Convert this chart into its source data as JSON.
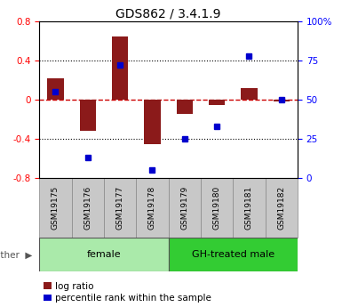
{
  "title": "GDS862 / 3.4.1.9",
  "samples": [
    "GSM19175",
    "GSM19176",
    "GSM19177",
    "GSM19178",
    "GSM19179",
    "GSM19180",
    "GSM19181",
    "GSM19182"
  ],
  "log_ratio": [
    0.22,
    -0.32,
    0.65,
    -0.45,
    -0.14,
    -0.05,
    0.12,
    -0.02
  ],
  "percentile_rank": [
    55,
    13,
    72,
    5,
    25,
    33,
    78,
    50
  ],
  "ylim_left": [
    -0.8,
    0.8
  ],
  "ylim_right": [
    0,
    100
  ],
  "bar_color": "#8B1A1A",
  "dot_color": "#0000CD",
  "zero_line_color": "#CC0000",
  "grid_color": "#000000",
  "bg_color": "#ffffff",
  "plot_bg": "#ffffff",
  "sample_box_color": "#C8C8C8",
  "groups": [
    {
      "label": "female",
      "start": 0,
      "end": 4,
      "color": "#AAEAAA"
    },
    {
      "label": "GH-treated male",
      "start": 4,
      "end": 8,
      "color": "#33CC33"
    }
  ],
  "other_label": "other",
  "legend_log_ratio": "log ratio",
  "legend_percentile": "percentile rank within the sample",
  "sample_fontsize": 6.5,
  "title_fontsize": 10,
  "axis_fontsize": 7.5,
  "legend_fontsize": 7.5,
  "group_fontsize": 8
}
